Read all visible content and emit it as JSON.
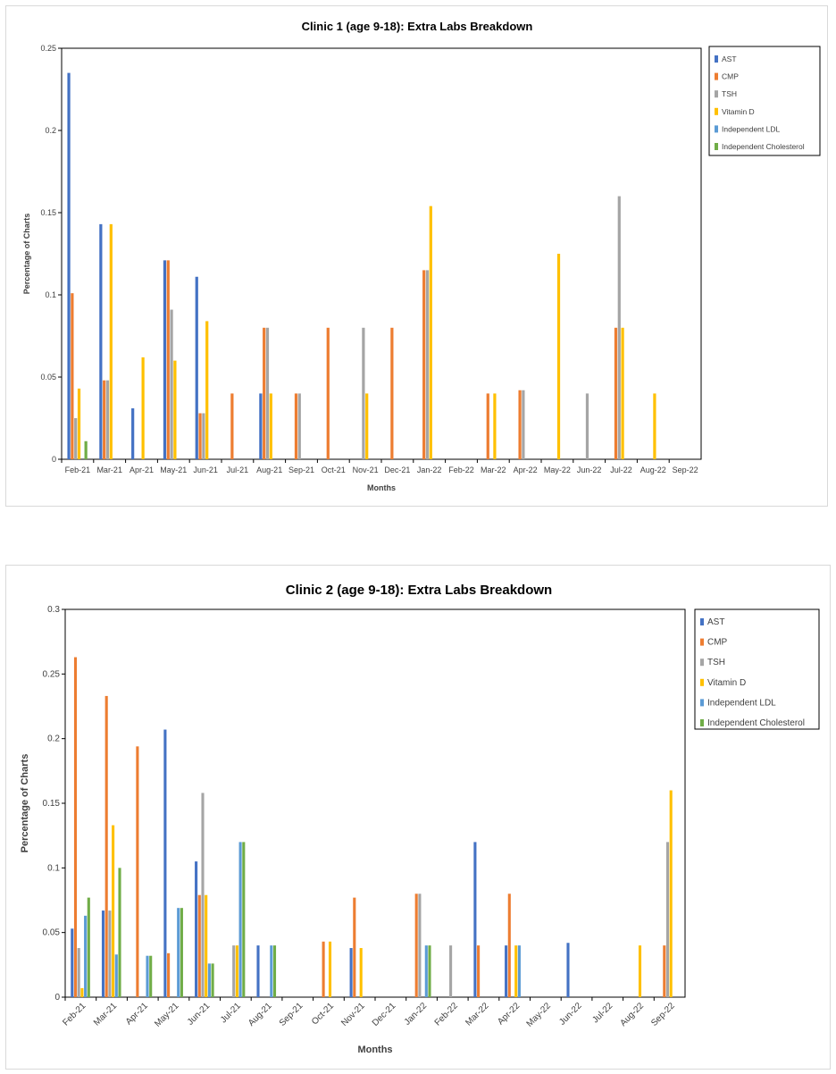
{
  "series_colors": [
    "#4472C4",
    "#ED7D31",
    "#A5A5A5",
    "#FFC000",
    "#5B9BD5",
    "#70AD47"
  ],
  "chart_data": [
    {
      "type": "bar",
      "title": "Clinic 1 (age 9-18): Extra Labs Breakdown",
      "xlabel": "Months",
      "ylabel": "Percentage of Charts",
      "ylim": [
        0,
        0.25
      ],
      "yticks": [
        0,
        0.05,
        0.1,
        0.15,
        0.2,
        0.25
      ],
      "ytick_labels": [
        "0",
        "0.05",
        "0.1",
        "0.15",
        "0.2",
        "0.25"
      ],
      "legend_position": "right",
      "categories": [
        "Feb-21",
        "Mar-21",
        "Apr-21",
        "May-21",
        "Jun-21",
        "Jul-21",
        "Aug-21",
        "Sep-21",
        "Oct-21",
        "Nov-21",
        "Dec-21",
        "Jan-22",
        "Feb-22",
        "Mar-22",
        "Apr-22",
        "May-22",
        "Jun-22",
        "Jul-22",
        "Aug-22",
        "Sep-22"
      ],
      "series": [
        {
          "name": "AST",
          "values": [
            0.235,
            0.143,
            0.031,
            0.121,
            0.111,
            0,
            0.04,
            0,
            0,
            0,
            0,
            0,
            0,
            0,
            0,
            0,
            0,
            0,
            0,
            0
          ]
        },
        {
          "name": "CMP",
          "values": [
            0.101,
            0.048,
            0,
            0.121,
            0.028,
            0.04,
            0.08,
            0.04,
            0.08,
            0,
            0.08,
            0.115,
            0,
            0.04,
            0.042,
            0,
            0,
            0.08,
            0,
            0
          ]
        },
        {
          "name": "TSH",
          "values": [
            0.025,
            0.048,
            0,
            0.091,
            0.028,
            0,
            0.08,
            0.04,
            0,
            0.08,
            0,
            0.115,
            0,
            0,
            0.042,
            0,
            0.04,
            0.16,
            0,
            0
          ]
        },
        {
          "name": "Vitamin D",
          "values": [
            0.043,
            0.143,
            0.062,
            0.06,
            0.084,
            0,
            0.04,
            0,
            0,
            0.04,
            0,
            0.154,
            0,
            0.04,
            0,
            0.125,
            0,
            0.08,
            0.04,
            0
          ]
        },
        {
          "name": "Independent LDL",
          "values": [
            0,
            0,
            0,
            0,
            0,
            0,
            0,
            0,
            0,
            0,
            0,
            0,
            0,
            0,
            0,
            0,
            0,
            0,
            0,
            0
          ]
        },
        {
          "name": "Independent Cholesterol",
          "values": [
            0.011,
            0,
            0,
            0,
            0,
            0,
            0,
            0,
            0,
            0,
            0,
            0,
            0,
            0,
            0,
            0,
            0,
            0,
            0,
            0
          ]
        }
      ]
    },
    {
      "type": "bar",
      "title": "Clinic 2 (age 9-18): Extra Labs Breakdown",
      "xlabel": "Months",
      "ylabel": "Percentage of Charts",
      "ylim": [
        0,
        0.3
      ],
      "yticks": [
        0,
        0.05,
        0.1,
        0.15,
        0.2,
        0.25,
        0.3
      ],
      "ytick_labels": [
        "0",
        "0.05",
        "0.1",
        "0.15",
        "0.2",
        "0.25",
        "0.3"
      ],
      "legend_position": "right",
      "categories": [
        "Feb-21",
        "Mar-21",
        "Apr-21",
        "May-21",
        "Jun-21",
        "Jul-21",
        "Aug-21",
        "Sep-21",
        "Oct-21",
        "Nov-21",
        "Dec-21",
        "Jan-22",
        "Feb-22",
        "Mar-22",
        "Apr-22",
        "May-22",
        "Jun-22",
        "Jul-22",
        "Aug-22",
        "Sep-22"
      ],
      "series": [
        {
          "name": "AST",
          "values": [
            0.053,
            0.067,
            0,
            0.207,
            0.105,
            0,
            0.04,
            0,
            0,
            0.038,
            0,
            0,
            0,
            0.12,
            0.04,
            0,
            0.042,
            0,
            0,
            0
          ]
        },
        {
          "name": "CMP",
          "values": [
            0.263,
            0.233,
            0.194,
            0.034,
            0.079,
            0,
            0,
            0,
            0.043,
            0.077,
            0,
            0.08,
            0,
            0.04,
            0.08,
            0,
            0,
            0,
            0,
            0.04
          ]
        },
        {
          "name": "TSH",
          "values": [
            0.038,
            0.067,
            0,
            0,
            0.158,
            0.04,
            0,
            0,
            0,
            0,
            0,
            0.08,
            0.04,
            0,
            0,
            0,
            0,
            0,
            0,
            0.12
          ]
        },
        {
          "name": "Vitamin D",
          "values": [
            0.007,
            0.133,
            0,
            0,
            0.079,
            0.04,
            0,
            0,
            0.043,
            0.038,
            0,
            0,
            0,
            0,
            0.04,
            0,
            0,
            0,
            0.04,
            0.16
          ]
        },
        {
          "name": "Independent LDL",
          "values": [
            0.063,
            0.033,
            0.032,
            0.069,
            0.026,
            0.12,
            0.04,
            0,
            0,
            0,
            0,
            0.04,
            0,
            0,
            0.04,
            0,
            0,
            0,
            0,
            0
          ]
        },
        {
          "name": "Independent Cholesterol",
          "values": [
            0.077,
            0.1,
            0.032,
            0.069,
            0.026,
            0.12,
            0.04,
            0,
            0,
            0,
            0,
            0.04,
            0,
            0,
            0,
            0,
            0,
            0,
            0,
            0
          ]
        }
      ]
    }
  ]
}
